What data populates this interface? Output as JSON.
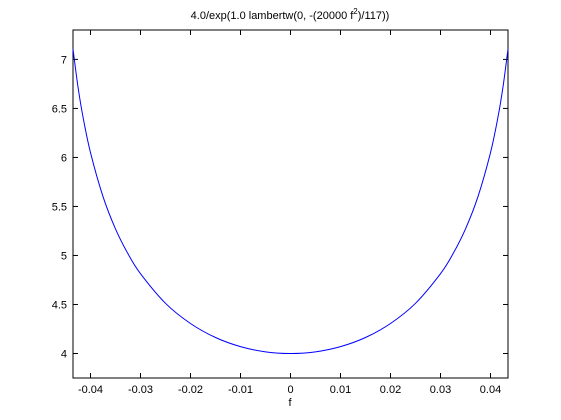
{
  "chart_data": {
    "type": "line",
    "title": [
      "4.0/exp(1.0 lambertw(0, -(20000 f",
      "2",
      ")/117))"
    ],
    "xlabel": "f",
    "x": [
      -0.0435,
      -0.0425,
      -0.0415,
      -0.04,
      -0.0375,
      -0.035,
      -0.0325,
      -0.03,
      -0.025,
      -0.02,
      -0.015,
      -0.01,
      -0.005,
      0,
      0.005,
      0.01,
      0.015,
      0.02,
      0.025,
      0.03,
      0.0325,
      0.035,
      0.0375,
      0.04,
      0.0415,
      0.0425,
      0.0435
    ],
    "series": [
      {
        "color": "#0000ff",
        "values": [
          7.106,
          6.719,
          6.413,
          6.049,
          5.601,
          5.271,
          5.017,
          4.814,
          4.512,
          4.306,
          4.163,
          4.07,
          4.017,
          4.0,
          4.017,
          4.07,
          4.163,
          4.306,
          4.512,
          4.814,
          5.017,
          5.271,
          5.601,
          6.049,
          6.413,
          6.719,
          7.106
        ]
      }
    ],
    "xlim": [
      -0.0435,
      0.0435
    ],
    "ylim": [
      3.75,
      7.3
    ],
    "xticks": [
      -0.04,
      -0.03,
      -0.02,
      -0.01,
      0,
      0.01,
      0.02,
      0.03,
      0.04
    ],
    "yticks": [
      4,
      4.5,
      5,
      5.5,
      6,
      6.5,
      7
    ],
    "grid": false
  }
}
